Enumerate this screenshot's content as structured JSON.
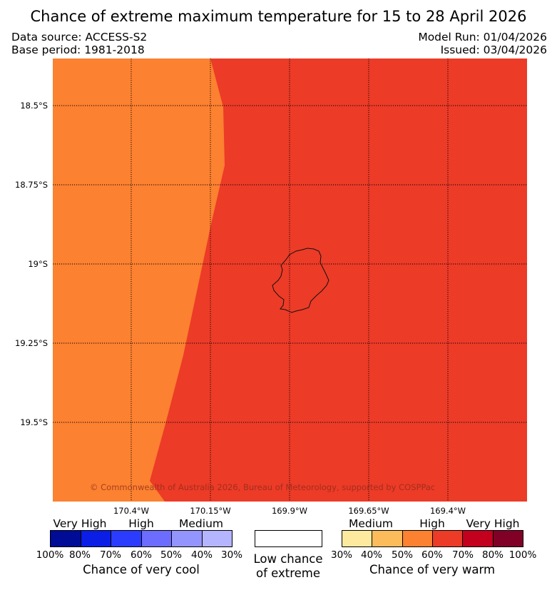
{
  "title": "Chance of extreme maximum temperature for 15 to 28 April 2026",
  "header": {
    "data_source": "Data source: ACCESS-S2",
    "base_period": "Base period: 1981-2018",
    "model_run": "Model Run: 01/04/2026",
    "issued": "Issued: 03/04/2026"
  },
  "map": {
    "lat_labels": [
      "18.5°S",
      "18.75°S",
      "19°S",
      "19.25°S",
      "19.5°S"
    ],
    "lon_labels": [
      "170.4°W",
      "170.15°W",
      "169.9°W",
      "169.65°W",
      "169.4°W"
    ],
    "copyright": "© Commonwealth of Australia 2026, Bureau of Meteorology, supported by COSPPac",
    "regions": [
      {
        "category": "High (50–60% chance of very warm)",
        "color": "#fc8130"
      },
      {
        "category": "High (60–70% chance of very warm)",
        "color": "#ec3b27"
      }
    ],
    "island_outline_color": "#111111"
  },
  "legend": {
    "cool": {
      "caption": "Chance of very cool",
      "categories": [
        "Very High",
        "High",
        "Medium"
      ],
      "ticks": [
        "100%",
        "80%",
        "70%",
        "60%",
        "50%",
        "40%",
        "30%"
      ],
      "colors": [
        "#000b96",
        "#0a1ee6",
        "#2b3cff",
        "#6c6cff",
        "#9494ff",
        "#b5b5ff"
      ]
    },
    "neutral": {
      "caption_line1": "Low chance",
      "caption_line2": "of extreme",
      "color": "#ffffff"
    },
    "warm": {
      "caption": "Chance of very warm",
      "categories": [
        "Medium",
        "High",
        "Very High"
      ],
      "ticks": [
        "30%",
        "40%",
        "50%",
        "60%",
        "70%",
        "80%",
        "100%"
      ],
      "colors": [
        "#feea9e",
        "#fdbc5b",
        "#fc8130",
        "#ec3b27",
        "#c3001e",
        "#800026"
      ]
    }
  }
}
